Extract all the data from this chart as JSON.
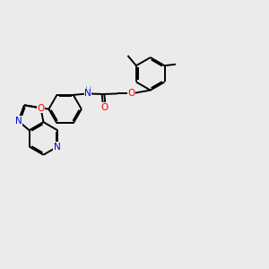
{
  "background_color": "#ebebeb",
  "bond_color": "#000000",
  "atom_colors": {
    "N": "#0000cd",
    "O": "#ff0000",
    "H": "#6aacac",
    "C": "#000000"
  },
  "lw": 1.4,
  "font_size": 7.5,
  "figsize": [
    3.0,
    3.0
  ],
  "dpi": 100
}
